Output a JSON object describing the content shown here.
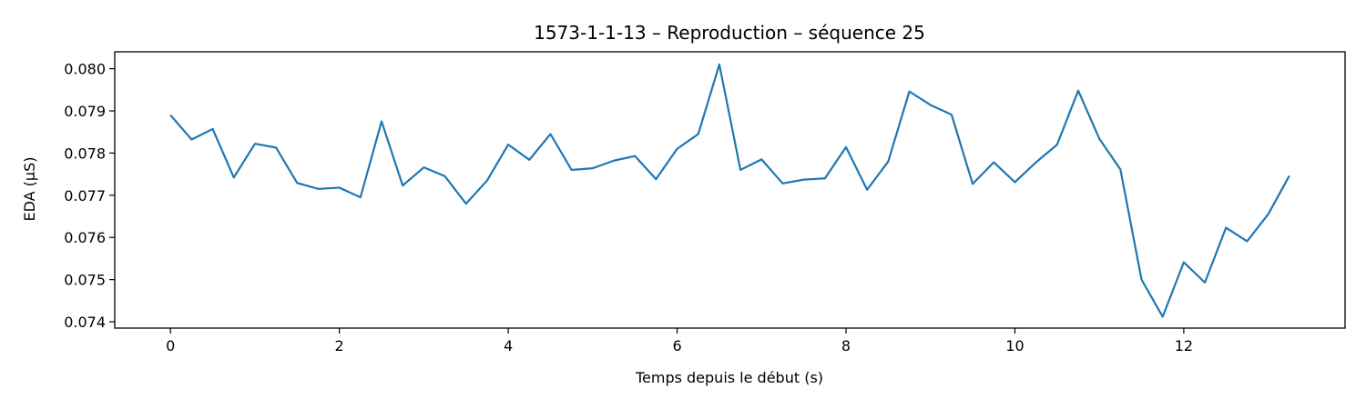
{
  "chart_data": {
    "type": "line",
    "title": "1573-1-1-13 – Reproduction – séquence 25",
    "xlabel": "Temps depuis le début (s)",
    "ylabel": "EDA (µS)",
    "xlim": [
      -0.66,
      13.91
    ],
    "ylim": [
      0.07385,
      0.0804
    ],
    "xticks": [
      0,
      2,
      4,
      6,
      8,
      10,
      12
    ],
    "xtick_labels": [
      "0",
      "2",
      "4",
      "6",
      "8",
      "10",
      "12"
    ],
    "yticks": [
      0.074,
      0.075,
      0.076,
      0.077,
      0.078,
      0.079,
      0.08
    ],
    "ytick_labels": [
      "0.074",
      "0.075",
      "0.076",
      "0.077",
      "0.078",
      "0.079",
      "0.080"
    ],
    "grid": false,
    "color": "#1f77b4",
    "series": [
      {
        "x": [
          0,
          0.25,
          0.5,
          0.75,
          1.0,
          1.25,
          1.5,
          1.75,
          2.0,
          2.25,
          2.5,
          2.75,
          3.0,
          3.25,
          3.5,
          3.75,
          4.0,
          4.25,
          4.5,
          4.75,
          5.0,
          5.25,
          5.5,
          5.75,
          6.0,
          6.25,
          6.5,
          6.75,
          7.0,
          7.25,
          7.5,
          7.75,
          8.0,
          8.25,
          8.5,
          8.75,
          9.0,
          9.25,
          9.5,
          9.75,
          10.0,
          10.25,
          10.5,
          10.75,
          11.0,
          11.25,
          11.5,
          11.75,
          12.0,
          12.25,
          12.5,
          12.75,
          13.0,
          13.25
        ],
        "values": [
          0.0789,
          0.07832,
          0.07857,
          0.07742,
          0.07822,
          0.07813,
          0.07729,
          0.07715,
          0.07718,
          0.07695,
          0.07875,
          0.07723,
          0.07766,
          0.07745,
          0.0768,
          0.07735,
          0.0782,
          0.07784,
          0.07845,
          0.0776,
          0.07764,
          0.07782,
          0.07793,
          0.07738,
          0.0781,
          0.07845,
          0.0801,
          0.0776,
          0.07785,
          0.07728,
          0.07737,
          0.0774,
          0.07814,
          0.07713,
          0.0778,
          0.07946,
          0.07914,
          0.07891,
          0.07727,
          0.07778,
          0.07731,
          0.07778,
          0.0782,
          0.07948,
          0.07834,
          0.07761,
          0.075,
          0.07412,
          0.07541,
          0.07493,
          0.07623,
          0.07591,
          0.07655,
          0.07746
        ]
      }
    ]
  }
}
